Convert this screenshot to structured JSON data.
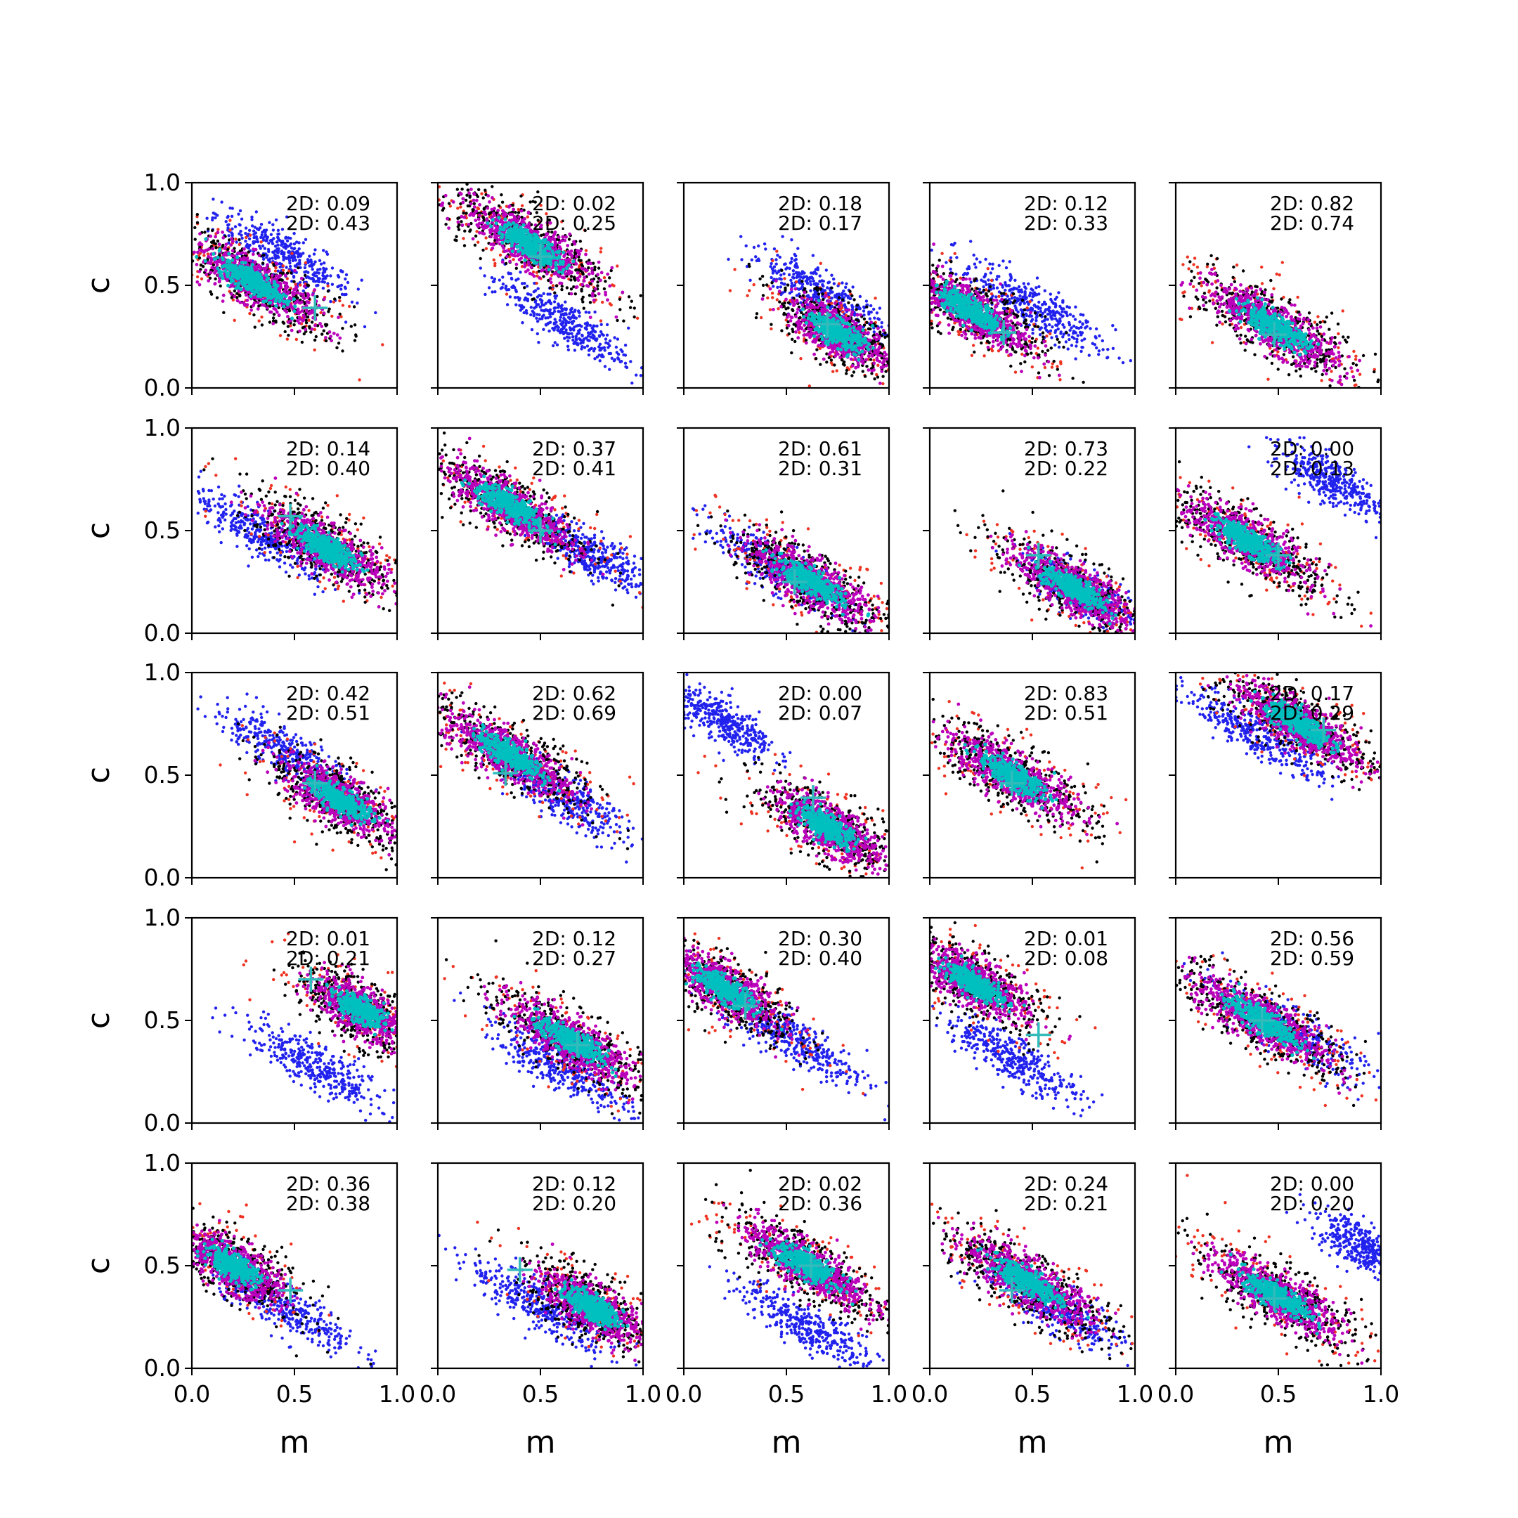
{
  "chart_data": {
    "type": "scatter",
    "layout": "5x5 grid of subplots",
    "xlabel": "m",
    "ylabel": "c",
    "xlim": [
      0,
      1
    ],
    "ylim": [
      0,
      1
    ],
    "x_ticks": [
      "0.0",
      "0.5",
      "1.0"
    ],
    "y_ticks": [
      "0.0",
      "0.5",
      "1.0"
    ],
    "grid": false,
    "stat_prefix": "2D",
    "series_colors": {
      "blue_cloud": "#2222ee",
      "red_cloud": "#ee3322",
      "black_cloud": "#000000",
      "magenta_cloud": "#bb00bb",
      "cyan_core": "#00bfbf",
      "cross_marker": "#33bbbb"
    },
    "panels": [
      {
        "stat1": "2D: 0.09",
        "stat2": "2D: 0.43",
        "main": {
          "cx": 0.3,
          "cy": 0.52,
          "sx": 0.4,
          "sy": 0.12
        },
        "blue": {
          "cx": 0.45,
          "cy": 0.65,
          "sx": 0.38,
          "sy": 0.1
        },
        "cross": {
          "x": 0.6,
          "y": 0.39
        }
      },
      {
        "stat1": "2D: 0.02",
        "stat2": "2D: 0.25",
        "main": {
          "cx": 0.45,
          "cy": 0.7,
          "sx": 0.4,
          "sy": 0.12
        },
        "blue": {
          "cx": 0.6,
          "cy": 0.33,
          "sx": 0.38,
          "sy": 0.1
        },
        "cross": {
          "x": 0.5,
          "y": 0.64
        }
      },
      {
        "stat1": "2D: 0.18",
        "stat2": "2D: 0.17",
        "main": {
          "cx": 0.75,
          "cy": 0.27,
          "sx": 0.3,
          "sy": 0.12
        },
        "blue": {
          "cx": 0.65,
          "cy": 0.47,
          "sx": 0.38,
          "sy": 0.1
        },
        "cross": {
          "x": 0.7,
          "y": 0.31
        }
      },
      {
        "stat1": "2D: 0.12",
        "stat2": "2D: 0.33",
        "main": {
          "cx": 0.2,
          "cy": 0.38,
          "sx": 0.38,
          "sy": 0.12
        },
        "blue": {
          "cx": 0.5,
          "cy": 0.4,
          "sx": 0.4,
          "sy": 0.1
        },
        "cross": {
          "x": 0.36,
          "y": 0.27
        }
      },
      {
        "stat1": "2D: 0.82",
        "stat2": "2D: 0.74",
        "main": {
          "cx": 0.48,
          "cy": 0.3,
          "sx": 0.42,
          "sy": 0.12
        },
        "blue": null,
        "cross": {
          "x": 0.48,
          "y": 0.26
        }
      },
      {
        "stat1": "2D: 0.14",
        "stat2": "2D: 0.40",
        "main": {
          "cx": 0.65,
          "cy": 0.42,
          "sx": 0.38,
          "sy": 0.12
        },
        "blue": {
          "cx": 0.35,
          "cy": 0.48,
          "sx": 0.4,
          "sy": 0.1
        },
        "cross": {
          "x": 0.48,
          "y": 0.57
        }
      },
      {
        "stat1": "2D: 0.37",
        "stat2": "2D: 0.41",
        "main": {
          "cx": 0.35,
          "cy": 0.62,
          "sx": 0.4,
          "sy": 0.12
        },
        "blue": {
          "cx": 0.75,
          "cy": 0.38,
          "sx": 0.3,
          "sy": 0.1
        },
        "cross": {
          "x": 0.5,
          "y": 0.5
        }
      },
      {
        "stat1": "2D: 0.61",
        "stat2": "2D: 0.31",
        "main": {
          "cx": 0.62,
          "cy": 0.25,
          "sx": 0.4,
          "sy": 0.12
        },
        "blue": {
          "cx": 0.45,
          "cy": 0.32,
          "sx": 0.4,
          "sy": 0.1
        },
        "cross": {
          "x": 0.54,
          "y": 0.25
        }
      },
      {
        "stat1": "2D: 0.73",
        "stat2": "2D: 0.22",
        "main": {
          "cx": 0.7,
          "cy": 0.22,
          "sx": 0.38,
          "sy": 0.12
        },
        "blue": {
          "cx": 0.75,
          "cy": 0.2,
          "sx": 0.3,
          "sy": 0.1
        },
        "cross": {
          "x": 0.53,
          "y": 0.38
        }
      },
      {
        "stat1": "2D: 0.00",
        "stat2": "2D: 0.13",
        "main": {
          "cx": 0.35,
          "cy": 0.45,
          "sx": 0.4,
          "sy": 0.12
        },
        "blue": {
          "cx": 0.75,
          "cy": 0.75,
          "sx": 0.3,
          "sy": 0.1
        },
        "cross": {
          "x": 0.5,
          "y": 0.38
        }
      },
      {
        "stat1": "2D: 0.42",
        "stat2": "2D: 0.51",
        "main": {
          "cx": 0.72,
          "cy": 0.38,
          "sx": 0.34,
          "sy": 0.12
        },
        "blue": {
          "cx": 0.45,
          "cy": 0.62,
          "sx": 0.4,
          "sy": 0.1
        },
        "cross": {
          "x": 0.6,
          "y": 0.46
        }
      },
      {
        "stat1": "2D: 0.62",
        "stat2": "2D: 0.69",
        "main": {
          "cx": 0.35,
          "cy": 0.6,
          "sx": 0.4,
          "sy": 0.12
        },
        "blue": {
          "cx": 0.6,
          "cy": 0.4,
          "sx": 0.38,
          "sy": 0.1
        },
        "cross": {
          "x": 0.33,
          "y": 0.51
        }
      },
      {
        "stat1": "2D: 0.00",
        "stat2": "2D: 0.07",
        "main": {
          "cx": 0.7,
          "cy": 0.25,
          "sx": 0.34,
          "sy": 0.12
        },
        "blue": {
          "cx": 0.2,
          "cy": 0.75,
          "sx": 0.28,
          "sy": 0.1
        },
        "cross": {
          "x": 0.63,
          "y": 0.39
        }
      },
      {
        "stat1": "2D: 0.83",
        "stat2": "2D: 0.51",
        "main": {
          "cx": 0.4,
          "cy": 0.5,
          "sx": 0.4,
          "sy": 0.12
        },
        "blue": null,
        "cross": {
          "x": 0.4,
          "y": 0.46
        }
      },
      {
        "stat1": "2D: 0.17",
        "stat2": "2D: 0.29",
        "main": {
          "cx": 0.6,
          "cy": 0.75,
          "sx": 0.4,
          "sy": 0.12
        },
        "blue": {
          "cx": 0.4,
          "cy": 0.7,
          "sx": 0.4,
          "sy": 0.1
        },
        "cross": {
          "x": 0.72,
          "y": 0.72
        }
      },
      {
        "stat1": "2D: 0.01",
        "stat2": "2D: 0.21",
        "main": {
          "cx": 0.82,
          "cy": 0.55,
          "sx": 0.3,
          "sy": 0.12
        },
        "blue": {
          "cx": 0.6,
          "cy": 0.28,
          "sx": 0.4,
          "sy": 0.1
        },
        "cross": {
          "x": 0.58,
          "y": 0.7
        }
      },
      {
        "stat1": "2D: 0.12",
        "stat2": "2D: 0.27",
        "main": {
          "cx": 0.65,
          "cy": 0.4,
          "sx": 0.4,
          "sy": 0.12
        },
        "blue": {
          "cx": 0.6,
          "cy": 0.27,
          "sx": 0.4,
          "sy": 0.1
        },
        "cross": {
          "x": 0.68,
          "y": 0.38
        }
      },
      {
        "stat1": "2D: 0.30",
        "stat2": "2D: 0.40",
        "main": {
          "cx": 0.2,
          "cy": 0.65,
          "sx": 0.35,
          "sy": 0.12
        },
        "blue": {
          "cx": 0.55,
          "cy": 0.4,
          "sx": 0.4,
          "sy": 0.1
        },
        "cross": {
          "x": 0.3,
          "y": 0.57
        }
      },
      {
        "stat1": "2D: 0.01",
        "stat2": "2D: 0.08",
        "main": {
          "cx": 0.22,
          "cy": 0.68,
          "sx": 0.35,
          "sy": 0.12
        },
        "blue": {
          "cx": 0.4,
          "cy": 0.32,
          "sx": 0.38,
          "sy": 0.1
        },
        "cross": {
          "x": 0.53,
          "y": 0.43
        }
      },
      {
        "stat1": "2D: 0.56",
        "stat2": "2D: 0.59",
        "main": {
          "cx": 0.42,
          "cy": 0.5,
          "sx": 0.42,
          "sy": 0.12
        },
        "blue": {
          "cx": 0.55,
          "cy": 0.45,
          "sx": 0.4,
          "sy": 0.1
        },
        "cross": {
          "x": 0.42,
          "y": 0.5
        }
      },
      {
        "stat1": "2D: 0.36",
        "stat2": "2D: 0.38",
        "main": {
          "cx": 0.2,
          "cy": 0.5,
          "sx": 0.32,
          "sy": 0.12
        },
        "blue": {
          "cx": 0.45,
          "cy": 0.3,
          "sx": 0.4,
          "sy": 0.1
        },
        "cross": {
          "x": 0.48,
          "y": 0.38
        }
      },
      {
        "stat1": "2D: 0.12",
        "stat2": "2D: 0.20",
        "main": {
          "cx": 0.75,
          "cy": 0.3,
          "sx": 0.32,
          "sy": 0.12
        },
        "blue": {
          "cx": 0.5,
          "cy": 0.3,
          "sx": 0.4,
          "sy": 0.1
        },
        "cross": {
          "x": 0.4,
          "y": 0.48
        }
      },
      {
        "stat1": "2D: 0.02",
        "stat2": "2D: 0.36",
        "main": {
          "cx": 0.6,
          "cy": 0.5,
          "sx": 0.4,
          "sy": 0.12
        },
        "blue": {
          "cx": 0.6,
          "cy": 0.2,
          "sx": 0.38,
          "sy": 0.1
        },
        "cross": {
          "x": 0.62,
          "y": 0.5
        }
      },
      {
        "stat1": "2D: 0.24",
        "stat2": "2D: 0.21",
        "main": {
          "cx": 0.48,
          "cy": 0.42,
          "sx": 0.42,
          "sy": 0.12
        },
        "blue": {
          "cx": 0.6,
          "cy": 0.3,
          "sx": 0.4,
          "sy": 0.1
        },
        "cross": {
          "x": 0.4,
          "y": 0.38
        }
      },
      {
        "stat1": "2D: 0.00",
        "stat2": "2D: 0.20",
        "main": {
          "cx": 0.5,
          "cy": 0.35,
          "sx": 0.4,
          "sy": 0.12
        },
        "blue": {
          "cx": 0.9,
          "cy": 0.6,
          "sx": 0.25,
          "sy": 0.1
        },
        "cross": {
          "x": 0.48,
          "y": 0.34
        }
      }
    ]
  }
}
